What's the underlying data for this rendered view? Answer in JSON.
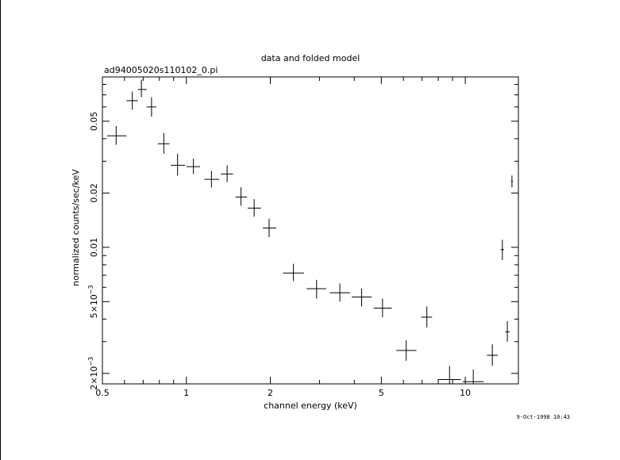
{
  "chart_data": {
    "type": "scatter",
    "title": "data and folded model",
    "subtitle": "ad94005020s110102_0.pi",
    "xlabel": "channel energy (keV)",
    "ylabel": "normalized counts/sec/keV",
    "x_scale": "log",
    "y_scale": "log",
    "xlim": [
      0.5,
      15.5
    ],
    "ylim": [
      0.00175,
      0.088
    ],
    "x_ticks": [
      {
        "value": 0.5,
        "label": "0.5"
      },
      {
        "value": 1,
        "label": "1"
      },
      {
        "value": 2,
        "label": "2"
      },
      {
        "value": 5,
        "label": "5"
      },
      {
        "value": 10,
        "label": "10"
      }
    ],
    "y_ticks": [
      {
        "value": 0.05,
        "label": "0.05"
      },
      {
        "value": 0.02,
        "label": "0.02"
      },
      {
        "value": 0.01,
        "label": "0.01"
      },
      {
        "value": 0.005,
        "label": "5×10",
        "sup": "−3"
      },
      {
        "value": 0.002,
        "label": "2×10",
        "sup": "−3"
      }
    ],
    "series": [
      {
        "points": [
          {
            "x": 0.56,
            "x_lo": 0.52,
            "x_hi": 0.61,
            "y": 0.0415,
            "y_lo": 0.037,
            "y_hi": 0.047
          },
          {
            "x": 0.64,
            "x_lo": 0.61,
            "x_hi": 0.67,
            "y": 0.065,
            "y_lo": 0.058,
            "y_hi": 0.073
          },
          {
            "x": 0.69,
            "x_lo": 0.67,
            "x_hi": 0.72,
            "y": 0.075,
            "y_lo": 0.068,
            "y_hi": 0.085
          },
          {
            "x": 0.75,
            "x_lo": 0.72,
            "x_hi": 0.78,
            "y": 0.06,
            "y_lo": 0.053,
            "y_hi": 0.068
          },
          {
            "x": 0.83,
            "x_lo": 0.79,
            "x_hi": 0.87,
            "y": 0.0375,
            "y_lo": 0.033,
            "y_hi": 0.043
          },
          {
            "x": 0.93,
            "x_lo": 0.88,
            "x_hi": 0.99,
            "y": 0.0285,
            "y_lo": 0.025,
            "y_hi": 0.033
          },
          {
            "x": 1.06,
            "x_lo": 1.0,
            "x_hi": 1.12,
            "y": 0.028,
            "y_lo": 0.0255,
            "y_hi": 0.031
          },
          {
            "x": 1.23,
            "x_lo": 1.16,
            "x_hi": 1.31,
            "y": 0.0238,
            "y_lo": 0.0215,
            "y_hi": 0.0265
          },
          {
            "x": 1.4,
            "x_lo": 1.33,
            "x_hi": 1.47,
            "y": 0.0255,
            "y_lo": 0.023,
            "y_hi": 0.0285
          },
          {
            "x": 1.57,
            "x_lo": 1.5,
            "x_hi": 1.65,
            "y": 0.019,
            "y_lo": 0.017,
            "y_hi": 0.0215
          },
          {
            "x": 1.75,
            "x_lo": 1.66,
            "x_hi": 1.85,
            "y": 0.0165,
            "y_lo": 0.0148,
            "y_hi": 0.0185
          },
          {
            "x": 1.98,
            "x_lo": 1.88,
            "x_hi": 2.1,
            "y": 0.0128,
            "y_lo": 0.0114,
            "y_hi": 0.0144
          },
          {
            "x": 2.42,
            "x_lo": 2.22,
            "x_hi": 2.64,
            "y": 0.0072,
            "y_lo": 0.0065,
            "y_hi": 0.0081
          },
          {
            "x": 2.93,
            "x_lo": 2.7,
            "x_hi": 3.17,
            "y": 0.0059,
            "y_lo": 0.0052,
            "y_hi": 0.0066
          },
          {
            "x": 3.55,
            "x_lo": 3.27,
            "x_hi": 3.86,
            "y": 0.0056,
            "y_lo": 0.005,
            "y_hi": 0.0063
          },
          {
            "x": 4.25,
            "x_lo": 3.92,
            "x_hi": 4.62,
            "y": 0.0053,
            "y_lo": 0.0047,
            "y_hi": 0.0059
          },
          {
            "x": 5.05,
            "x_lo": 4.7,
            "x_hi": 5.45,
            "y": 0.0046,
            "y_lo": 0.0041,
            "y_hi": 0.0052
          },
          {
            "x": 6.14,
            "x_lo": 5.66,
            "x_hi": 6.68,
            "y": 0.00268,
            "y_lo": 0.00235,
            "y_hi": 0.00305
          },
          {
            "x": 7.28,
            "x_lo": 6.95,
            "x_hi": 7.6,
            "y": 0.0041,
            "y_lo": 0.0036,
            "y_hi": 0.0047
          },
          {
            "x": 8.78,
            "x_lo": 7.97,
            "x_hi": 9.64,
            "y": 0.00185,
            "y_lo": 0.0016,
            "y_hi": 0.0022
          },
          {
            "x": 10.68,
            "x_lo": 9.78,
            "x_hi": 11.64,
            "y": 0.0018,
            "y_lo": 0.0016,
            "y_hi": 0.0021
          },
          {
            "x": 12.5,
            "x_lo": 11.95,
            "x_hi": 13.08,
            "y": 0.00252,
            "y_lo": 0.0022,
            "y_hi": 0.0029
          },
          {
            "x": 13.58,
            "x_lo": 13.4,
            "x_hi": 13.77,
            "y": 0.0097,
            "y_lo": 0.0085,
            "y_hi": 0.011
          },
          {
            "x": 14.15,
            "x_lo": 13.9,
            "x_hi": 14.4,
            "y": 0.0034,
            "y_lo": 0.003,
            "y_hi": 0.0039
          },
          {
            "x": 14.7,
            "x_lo": 14.6,
            "x_hi": 14.8,
            "y": 0.0232,
            "y_lo": 0.0215,
            "y_hi": 0.025
          }
        ]
      }
    ],
    "grid": false,
    "legend": "none"
  },
  "footer": {
    "timestamp": "9-Oct-1998 10:43"
  }
}
